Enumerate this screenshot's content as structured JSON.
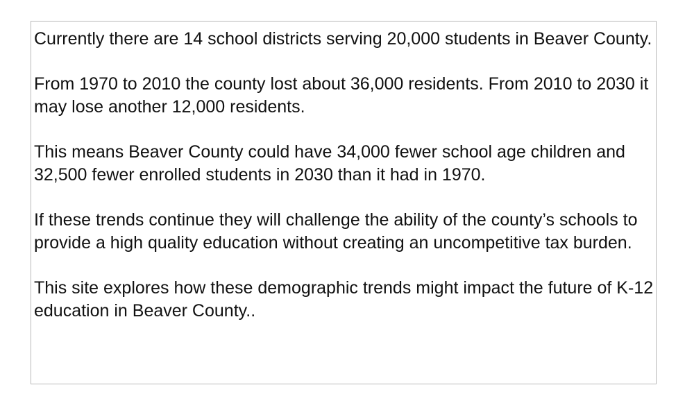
{
  "panel": {
    "paragraphs": [
      "Currently there are 14 school districts serving 20,000 students in Beaver County.",
      "From 1970 to 2010 the county lost about 36,000 residents. From 2010 to 2030 it may lose another 12,000 residents.",
      "This means Beaver County could have 34,000 fewer school age children and 32,500 fewer enrolled students in 2030 than it had in 1970.",
      "If these trends continue they will challenge the ability of the county’s schools to provide a high quality education without creating an uncompetitive tax burden.",
      "This site explores how these demographic trends might impact the future of K-12 education in Beaver County.."
    ]
  }
}
